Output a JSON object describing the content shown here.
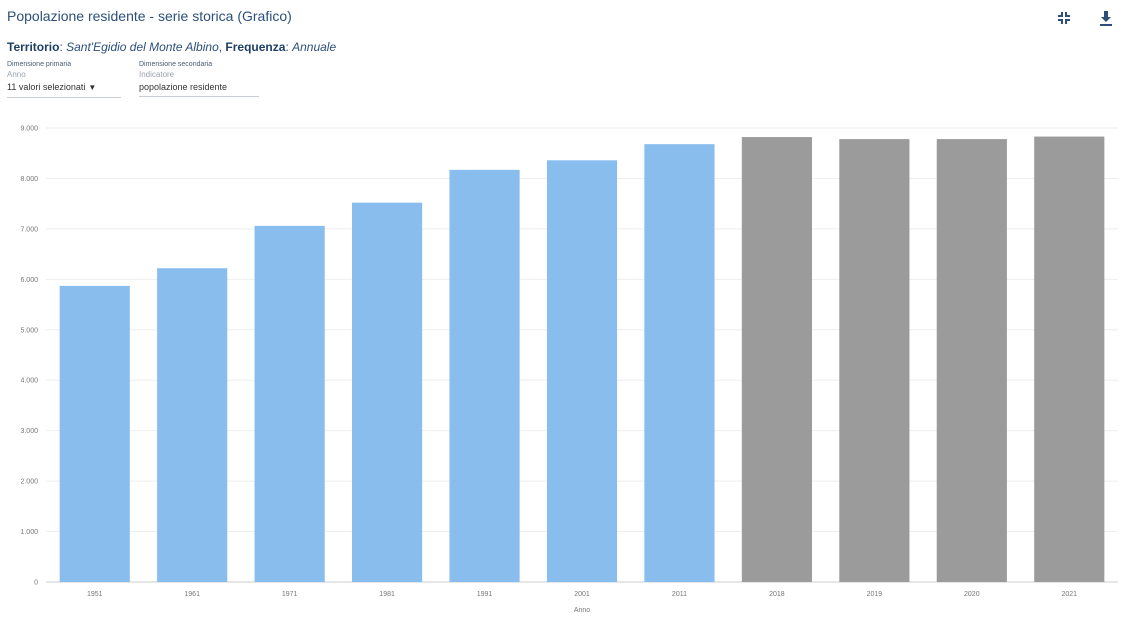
{
  "header": {
    "title": "Popolazione residente - serie storica (Grafico)",
    "icons": [
      "fullscreen-icon",
      "download-icon"
    ]
  },
  "meta": {
    "territorio_label": "Territorio",
    "territorio_value": "Sant'Egidio del Monte Albino",
    "frequenza_label": "Frequenza",
    "frequenza_value": "Annuale"
  },
  "dimensions": {
    "primary_caption": "Dimensione primaria",
    "primary_sub": "Anno",
    "primary_value": "11 valori selezionati",
    "secondary_caption": "Dimensione secondaria",
    "secondary_sub": "Indicatore",
    "secondary_value": "popolazione residente"
  },
  "colors": {
    "census_bar": "#88bdee",
    "annual_bar": "#9b9b9b"
  },
  "chart_data": {
    "type": "bar",
    "categories": [
      "1951",
      "1961",
      "1971",
      "1981",
      "1991",
      "2001",
      "2011",
      "2018",
      "2019",
      "2020",
      "2021"
    ],
    "values": [
      5870,
      6220,
      7060,
      7520,
      8170,
      8360,
      8680,
      8820,
      8780,
      8780,
      8830
    ],
    "bar_groups": [
      "census",
      "census",
      "census",
      "census",
      "census",
      "census",
      "census",
      "annual",
      "annual",
      "annual",
      "annual"
    ],
    "ylim": [
      0,
      9000
    ],
    "yticks": [
      "0",
      "1.000",
      "2.000",
      "3.000",
      "4.000",
      "5.000",
      "6.000",
      "7.000",
      "8.000",
      "9.000"
    ],
    "xlabel": "Anno",
    "ylabel": "",
    "grid": true
  }
}
